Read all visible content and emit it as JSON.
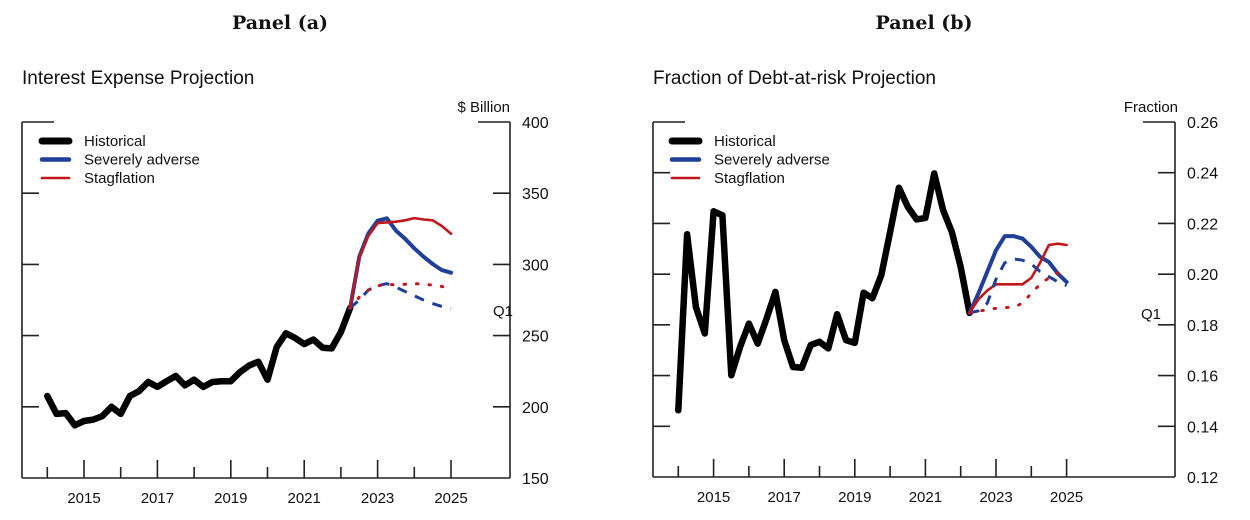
{
  "panels": [
    {
      "label": "Panel (a)"
    },
    {
      "label": "Panel (b)"
    }
  ],
  "chart_data": [
    {
      "type": "line",
      "title": "Interest Expense Projection",
      "ylabel": "$ Billion",
      "xlabel": "",
      "ylim": [
        150,
        400
      ],
      "yticks": [
        150,
        200,
        250,
        300,
        350,
        400
      ],
      "ytick_labels": [
        "150",
        "200",
        "250",
        "300",
        "350",
        "400"
      ],
      "xlim": [
        2013.3,
        2025.8
      ],
      "xticks_major": [
        2015,
        2017,
        2019,
        2021,
        2023,
        2025
      ],
      "xtick_labels": [
        "2015",
        "2017",
        "2019",
        "2021",
        "2023",
        "2025"
      ],
      "xticks_minor": [
        2014,
        2016,
        2018,
        2020,
        2022,
        2024
      ],
      "grid": false,
      "legend": {
        "position": "top-left",
        "entries": [
          "Historical",
          "Severely adverse",
          "Stagflation"
        ]
      },
      "annotation": "Q1",
      "colors": {
        "historical": "#000000",
        "severely_adverse": "#1f3f99",
        "stagflation": "#c0161c"
      },
      "series": [
        {
          "name": "Historical",
          "style": "solid-thick",
          "color_key": "historical",
          "start": 2014.0,
          "step": 0.25,
          "values": [
            207.6,
            195,
            195.6,
            187,
            190,
            191,
            193.5,
            200,
            195,
            207.6,
            211,
            217.4,
            214,
            218,
            221.6,
            215,
            219,
            214,
            217.4,
            218,
            218,
            224.4,
            229,
            231.7,
            219,
            242,
            251.6,
            248.4,
            244,
            247.2,
            241.5,
            241,
            252.5,
            269.4
          ]
        },
        {
          "name": "Severely adverse",
          "style": "solid",
          "color_key": "severely_adverse",
          "start": 2022.25,
          "step": 0.25,
          "values": [
            269.4,
            305.4,
            321.8,
            330.7,
            332.4,
            323.7,
            318,
            311.3,
            305.4,
            300.3,
            296,
            294.2
          ]
        },
        {
          "name": "Stagflation",
          "style": "solid-thin",
          "color_key": "stagflation",
          "start": 2022.25,
          "step": 0.25,
          "values": [
            269.4,
            305,
            320,
            329,
            329.5,
            330,
            331,
            332.5,
            331.5,
            331,
            327,
            321.5
          ]
        },
        {
          "name": "Severely adverse Q1",
          "style": "dashed",
          "color_key": "severely_adverse",
          "start": 2022.25,
          "step": 0.25,
          "values": [
            269.4,
            275,
            282,
            285,
            286.5,
            284,
            281,
            278,
            275,
            272.5,
            270.5,
            269
          ]
        },
        {
          "name": "Stagflation Q1",
          "style": "dotted",
          "color_key": "stagflation",
          "start": 2022.25,
          "step": 0.25,
          "values": [
            269.4,
            277,
            282,
            285,
            286,
            285.5,
            286,
            286.5,
            286,
            285.5,
            284.5,
            283
          ]
        }
      ]
    },
    {
      "type": "line",
      "title": "Fraction of Debt-at-risk Projection",
      "ylabel": "Fraction",
      "xlabel": "",
      "ylim": [
        0.12,
        0.26
      ],
      "yticks": [
        0.12,
        0.14,
        0.16,
        0.18,
        0.2,
        0.22,
        0.24,
        0.26
      ],
      "ytick_labels": [
        "0.12",
        "0.14",
        "0.16",
        "0.18",
        "0.20",
        "0.22",
        "0.24",
        "0.26"
      ],
      "xlim": [
        2013.3,
        2025.8
      ],
      "xticks_major": [
        2015,
        2017,
        2019,
        2021,
        2023,
        2025
      ],
      "xtick_labels": [
        "2015",
        "2017",
        "2019",
        "2021",
        "2023",
        "2025"
      ],
      "xticks_minor": [
        2014,
        2016,
        2018,
        2020,
        2022,
        2024
      ],
      "grid": false,
      "legend": {
        "position": "top-left",
        "entries": [
          "Historical",
          "Severely adverse",
          "Stagflation"
        ]
      },
      "annotation": "Q1",
      "colors": {
        "historical": "#000000",
        "severely_adverse": "#1f3f99",
        "stagflation": "#c0161c"
      },
      "series": [
        {
          "name": "Historical",
          "style": "solid-thick",
          "color_key": "historical",
          "start": 2014.0,
          "step": 0.25,
          "values": [
            0.1463,
            0.2157,
            0.187,
            0.1766,
            0.2248,
            0.2232,
            0.1601,
            0.1713,
            0.1805,
            0.1726,
            0.1825,
            0.193,
            0.174,
            0.1634,
            0.1631,
            0.172,
            0.1733,
            0.1707,
            0.1842,
            0.174,
            0.1729,
            0.1927,
            0.1905,
            0.1996,
            0.2166,
            0.2341,
            0.2265,
            0.2216,
            0.2222,
            0.2397,
            0.2252,
            0.2166,
            0.2028,
            0.1847
          ]
        },
        {
          "name": "Severely adverse",
          "style": "solid",
          "color_key": "severely_adverse",
          "start": 2022.25,
          "step": 0.25,
          "values": [
            0.1847,
            0.1923,
            0.2009,
            0.2094,
            0.215,
            0.215,
            0.214,
            0.2108,
            0.2068,
            0.2048,
            0.2002,
            0.1969
          ]
        },
        {
          "name": "Stagflation",
          "style": "solid-thin",
          "color_key": "stagflation",
          "start": 2022.25,
          "step": 0.25,
          "values": [
            0.1847,
            0.19,
            0.1935,
            0.196,
            0.196,
            0.196,
            0.196,
            0.1985,
            0.2045,
            0.2115,
            0.212,
            0.2115
          ]
        },
        {
          "name": "Severely adverse Q1",
          "style": "dashed",
          "color_key": "severely_adverse",
          "start": 2022.25,
          "step": 0.25,
          "values": [
            0.1847,
            0.1855,
            0.1885,
            0.198,
            0.2045,
            0.206,
            0.2055,
            0.204,
            0.201,
            0.199,
            0.197,
            0.1955
          ]
        },
        {
          "name": "Stagflation Q1",
          "style": "dotted",
          "color_key": "stagflation",
          "start": 2022.25,
          "step": 0.25,
          "values": [
            0.1847,
            0.1853,
            0.186,
            0.1865,
            0.1868,
            0.187,
            0.1885,
            0.1925,
            0.196,
            0.1985,
            0.2005,
            0.202
          ]
        }
      ]
    }
  ]
}
